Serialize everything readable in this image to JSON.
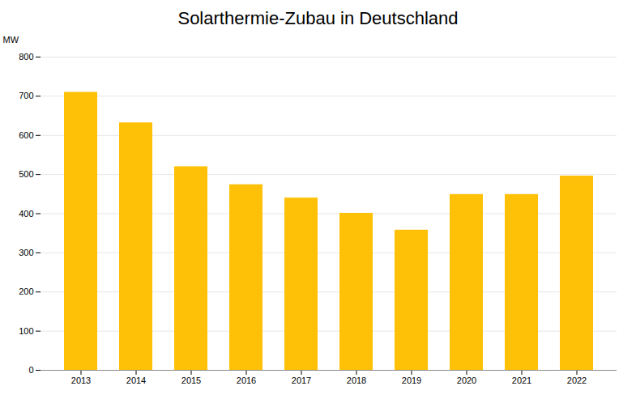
{
  "chart_data": {
    "type": "bar",
    "title": "Solarthermie-Zubau in Deutschland",
    "ylabel": "MW",
    "categories": [
      "2013",
      "2014",
      "2015",
      "2016",
      "2017",
      "2018",
      "2019",
      "2020",
      "2021",
      "2022"
    ],
    "values": [
      710,
      632,
      520,
      474,
      440,
      401,
      358,
      449,
      449,
      496
    ],
    "color": "#FFC107",
    "ylim": [
      0,
      800
    ],
    "yticks": [
      0,
      100,
      200,
      300,
      400,
      500,
      600,
      700,
      800
    ],
    "grid": true
  }
}
